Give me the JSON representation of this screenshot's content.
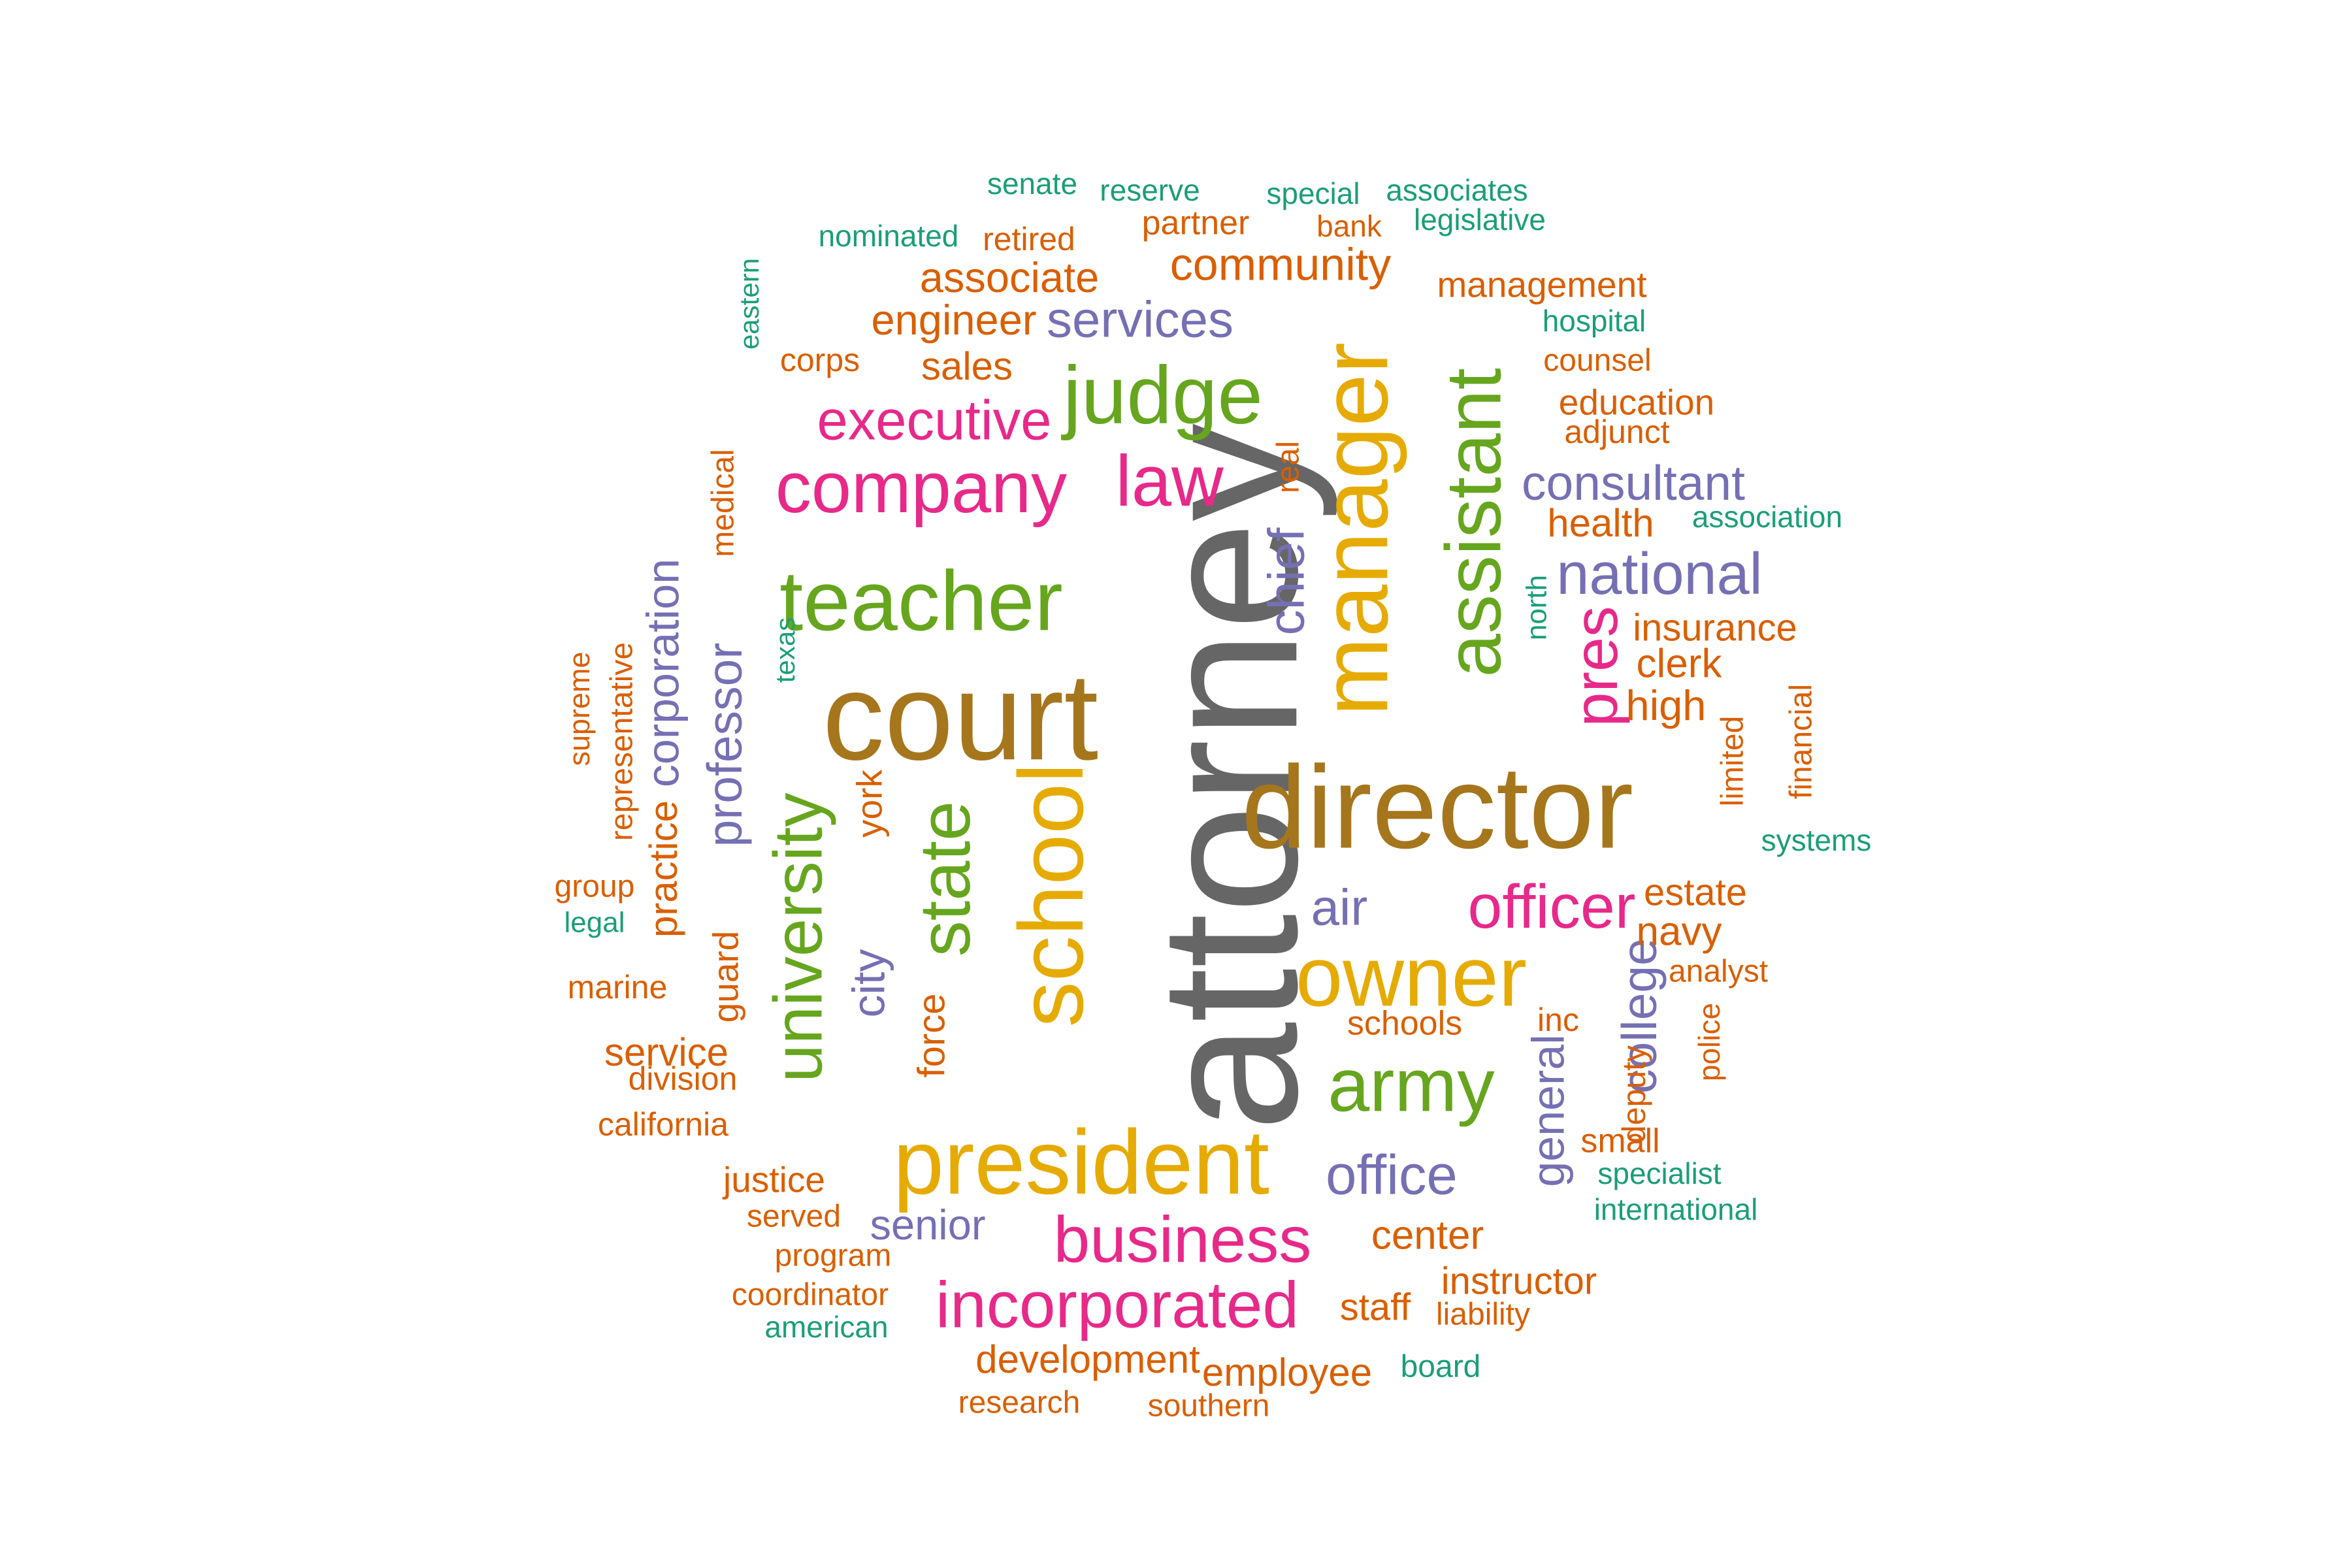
{
  "palette": {
    "gray": "#666666",
    "gold": "#E6AB02",
    "brown": "#A6761D",
    "green": "#66A61E",
    "pink": "#E7298A",
    "purple": "#7570B3",
    "orange": "#D95F02",
    "teal": "#1B9E77",
    "background": "#FFFFFF"
  },
  "words": [
    {
      "text": "attorney",
      "color": "gray",
      "rank": 1
    },
    {
      "text": "director",
      "color": "brown",
      "rank": 2
    },
    {
      "text": "court",
      "color": "brown",
      "rank": 3
    },
    {
      "text": "manager",
      "color": "gold",
      "rank": 4
    },
    {
      "text": "school",
      "color": "gold",
      "rank": 5
    },
    {
      "text": "assistant",
      "color": "green",
      "rank": 6
    },
    {
      "text": "president",
      "color": "gold",
      "rank": 7
    },
    {
      "text": "owner",
      "color": "gold",
      "rank": 8
    },
    {
      "text": "teacher",
      "color": "green",
      "rank": 9
    },
    {
      "text": "university",
      "color": "green",
      "rank": 10
    },
    {
      "text": "state",
      "color": "green",
      "rank": 11
    },
    {
      "text": "judge",
      "color": "green",
      "rank": 12
    },
    {
      "text": "army",
      "color": "green",
      "rank": 13
    },
    {
      "text": "company",
      "color": "pink",
      "rank": 14
    },
    {
      "text": "law",
      "color": "pink",
      "rank": 15
    },
    {
      "text": "incorporated",
      "color": "pink",
      "rank": 16
    },
    {
      "text": "business",
      "color": "pink",
      "rank": 17
    },
    {
      "text": "executive",
      "color": "pink",
      "rank": 18
    },
    {
      "text": "officer",
      "color": "pink",
      "rank": 19
    },
    {
      "text": "pres",
      "color": "pink",
      "rank": 20
    },
    {
      "text": "national",
      "color": "purple",
      "rank": 21
    },
    {
      "text": "office",
      "color": "purple",
      "rank": 22
    },
    {
      "text": "consultant",
      "color": "purple",
      "rank": 23
    },
    {
      "text": "professor",
      "color": "purple",
      "rank": 24
    },
    {
      "text": "services",
      "color": "purple",
      "rank": 25
    },
    {
      "text": "corporation",
      "color": "purple",
      "rank": 26
    },
    {
      "text": "chief",
      "color": "purple",
      "rank": 27
    },
    {
      "text": "air",
      "color": "purple",
      "rank": 28
    },
    {
      "text": "college",
      "color": "purple",
      "rank": 29
    },
    {
      "text": "general",
      "color": "purple",
      "rank": 30
    },
    {
      "text": "senior",
      "color": "purple",
      "rank": 31
    },
    {
      "text": "city",
      "color": "purple",
      "rank": 32
    },
    {
      "text": "community",
      "color": "orange",
      "rank": 33
    },
    {
      "text": "associate",
      "color": "orange",
      "rank": 34
    },
    {
      "text": "engineer",
      "color": "orange",
      "rank": 35
    },
    {
      "text": "sales",
      "color": "orange",
      "rank": 36
    },
    {
      "text": "health",
      "color": "orange",
      "rank": 37
    },
    {
      "text": "education",
      "color": "orange",
      "rank": 38
    },
    {
      "text": "insurance",
      "color": "orange",
      "rank": 39
    },
    {
      "text": "clerk",
      "color": "orange",
      "rank": 40
    },
    {
      "text": "high",
      "color": "orange",
      "rank": 41
    },
    {
      "text": "estate",
      "color": "orange",
      "rank": 42
    },
    {
      "text": "navy",
      "color": "orange",
      "rank": 43
    },
    {
      "text": "development",
      "color": "orange",
      "rank": 44
    },
    {
      "text": "employee",
      "color": "orange",
      "rank": 45
    },
    {
      "text": "center",
      "color": "orange",
      "rank": 46
    },
    {
      "text": "instructor",
      "color": "orange",
      "rank": 47
    },
    {
      "text": "staff",
      "color": "orange",
      "rank": 48
    },
    {
      "text": "service",
      "color": "orange",
      "rank": 49
    },
    {
      "text": "justice",
      "color": "orange",
      "rank": 50
    },
    {
      "text": "practice",
      "color": "orange",
      "rank": 51
    },
    {
      "text": "guard",
      "color": "orange",
      "rank": 52
    },
    {
      "text": "force",
      "color": "orange",
      "rank": 53
    },
    {
      "text": "york",
      "color": "orange",
      "rank": 54
    },
    {
      "text": "management",
      "color": "orange",
      "rank": 55
    },
    {
      "text": "partner",
      "color": "orange",
      "rank": 56
    },
    {
      "text": "retired",
      "color": "orange",
      "rank": 57
    },
    {
      "text": "corps",
      "color": "orange",
      "rank": 58
    },
    {
      "text": "counsel",
      "color": "orange",
      "rank": 59
    },
    {
      "text": "adjunct",
      "color": "orange",
      "rank": 60
    },
    {
      "text": "schools",
      "color": "orange",
      "rank": 61
    },
    {
      "text": "deputy",
      "color": "orange",
      "rank": 62
    },
    {
      "text": "small",
      "color": "orange",
      "rank": 63
    },
    {
      "text": "medical",
      "color": "orange",
      "rank": 64
    },
    {
      "text": "real",
      "color": "orange",
      "rank": 65
    },
    {
      "text": "representative",
      "color": "orange",
      "rank": 66
    },
    {
      "text": "supreme",
      "color": "orange",
      "rank": 67
    },
    {
      "text": "group",
      "color": "orange",
      "rank": 68
    },
    {
      "text": "marine",
      "color": "orange",
      "rank": 69
    },
    {
      "text": "division",
      "color": "orange",
      "rank": 70
    },
    {
      "text": "california",
      "color": "orange",
      "rank": 71
    },
    {
      "text": "served",
      "color": "orange",
      "rank": 72
    },
    {
      "text": "program",
      "color": "orange",
      "rank": 73
    },
    {
      "text": "coordinator",
      "color": "orange",
      "rank": 74
    },
    {
      "text": "research",
      "color": "orange",
      "rank": 75
    },
    {
      "text": "southern",
      "color": "orange",
      "rank": 76
    },
    {
      "text": "liability",
      "color": "orange",
      "rank": 77
    },
    {
      "text": "inc",
      "color": "orange",
      "rank": 78
    },
    {
      "text": "analyst",
      "color": "orange",
      "rank": 79
    },
    {
      "text": "police",
      "color": "orange",
      "rank": 80
    },
    {
      "text": "limited",
      "color": "orange",
      "rank": 81
    },
    {
      "text": "financial",
      "color": "orange",
      "rank": 82
    },
    {
      "text": "bank",
      "color": "orange",
      "rank": 83
    },
    {
      "text": "senate",
      "color": "teal",
      "rank": 84
    },
    {
      "text": "reserve",
      "color": "teal",
      "rank": 85
    },
    {
      "text": "special",
      "color": "teal",
      "rank": 86
    },
    {
      "text": "associates",
      "color": "teal",
      "rank": 87
    },
    {
      "text": "legislative",
      "color": "teal",
      "rank": 88
    },
    {
      "text": "nominated",
      "color": "teal",
      "rank": 89
    },
    {
      "text": "eastern",
      "color": "teal",
      "rank": 90
    },
    {
      "text": "hospital",
      "color": "teal",
      "rank": 91
    },
    {
      "text": "association",
      "color": "teal",
      "rank": 92
    },
    {
      "text": "north",
      "color": "teal",
      "rank": 93
    },
    {
      "text": "texas",
      "color": "teal",
      "rank": 94
    },
    {
      "text": "systems",
      "color": "teal",
      "rank": 95
    },
    {
      "text": "legal",
      "color": "teal",
      "rank": 96
    },
    {
      "text": "specialist",
      "color": "teal",
      "rank": 97
    },
    {
      "text": "international",
      "color": "teal",
      "rank": 98
    },
    {
      "text": "american",
      "color": "teal",
      "rank": 99
    },
    {
      "text": "board",
      "color": "teal",
      "rank": 100
    }
  ]
}
